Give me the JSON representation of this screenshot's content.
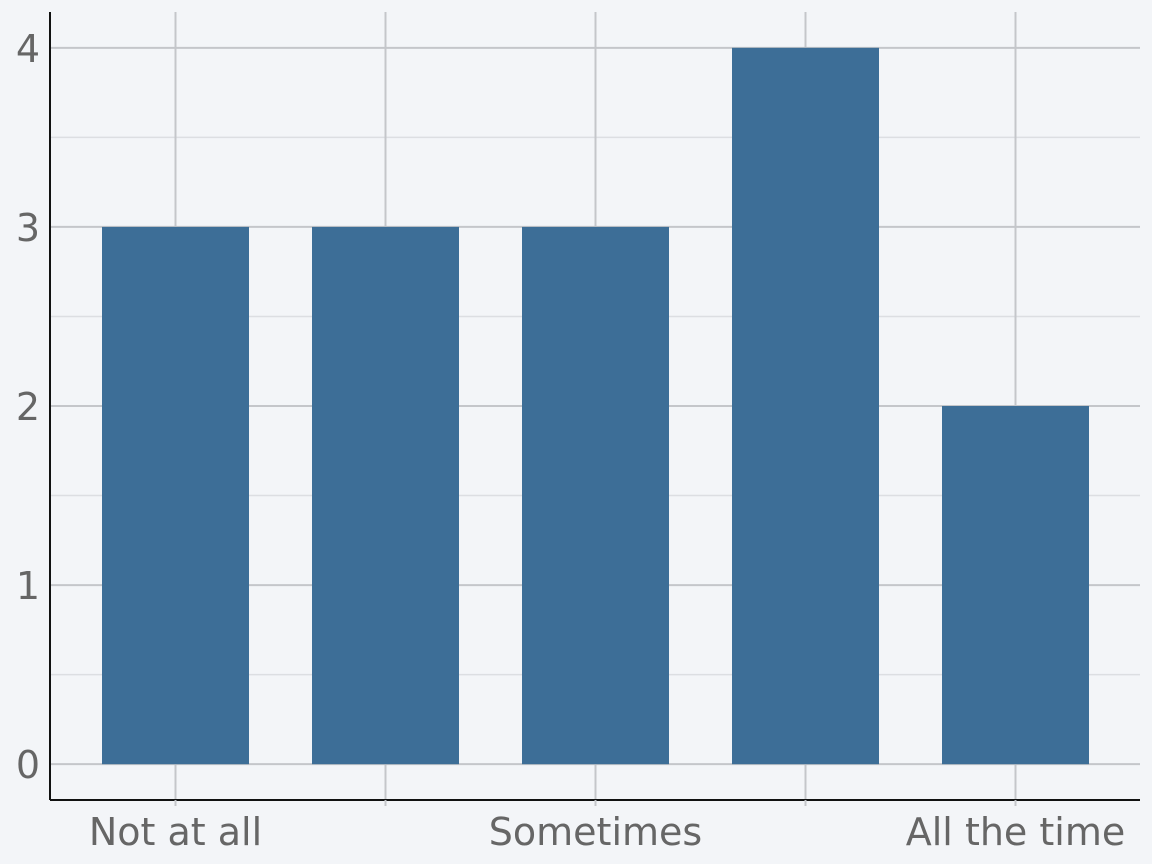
{
  "chart_data": {
    "type": "bar",
    "title": "",
    "xlabel": "",
    "ylabel": "",
    "categories": [
      "Not at all",
      "",
      "Sometimes",
      "",
      "All the time"
    ],
    "values": [
      3,
      3,
      3,
      4,
      2
    ],
    "ylim": [
      -0.2,
      4.2
    ],
    "y_ticks": [
      0,
      1,
      2,
      3,
      4
    ],
    "y_tick_labels": [
      "0",
      "1",
      "2",
      "3",
      "4"
    ],
    "x_tick_labels": [
      "Not at all",
      "",
      "Sometimes",
      "",
      "All the time"
    ],
    "grid": true,
    "legend": "none",
    "colors": {
      "bar": "#3d6e97",
      "background": "#f3f5f8",
      "grid_major": "#c4c6ca",
      "grid_minor": "#dcdee2",
      "axis": "#111111",
      "tick_text": "#666666"
    }
  }
}
